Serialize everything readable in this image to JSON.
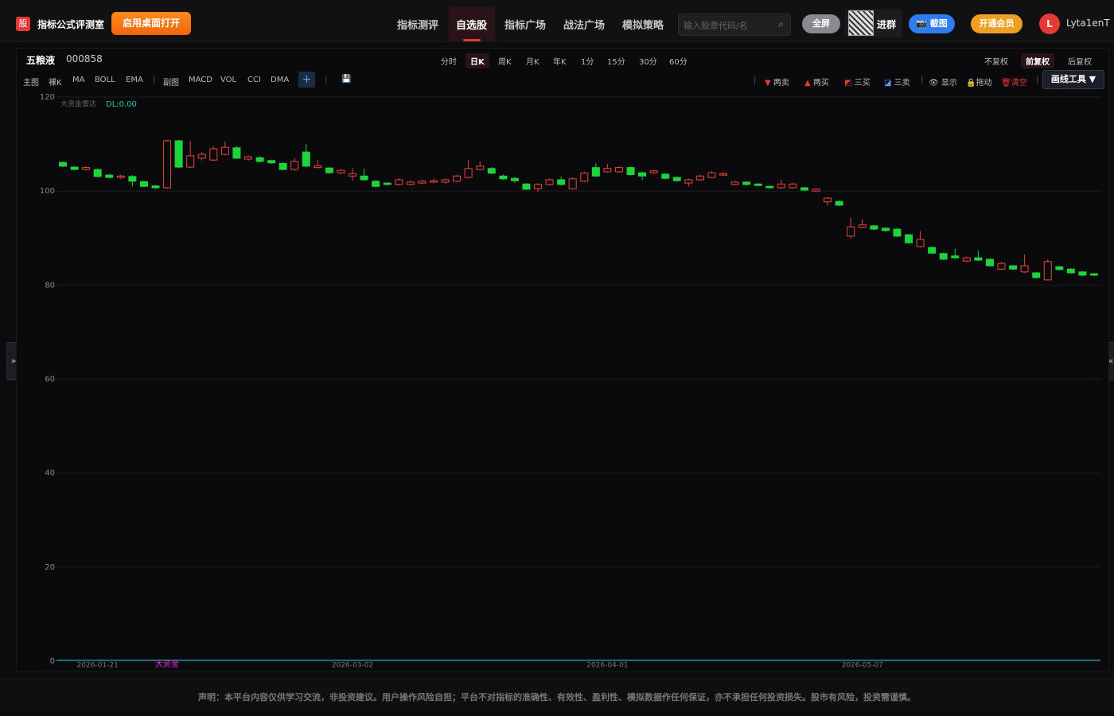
{
  "header": {
    "logo": "股",
    "app_name": "指标公式评测室",
    "desktop_button": "启用桌面打开",
    "nav": [
      "指标测评",
      "自选股",
      "指标广场",
      "战法广场",
      "模拟策略"
    ],
    "search_placeholder": "输入股票代码/名",
    "fullscreen": "全屏",
    "group": "进群",
    "screenshot": "截图",
    "vip": "开通会员",
    "avatar": "L",
    "username": "Lyta1enT"
  },
  "stock": {
    "name": "五粮液",
    "code": "000858"
  },
  "periods": [
    "分时",
    "日K",
    "周K",
    "月K",
    "年K",
    "1分",
    "15分",
    "30分",
    "60分"
  ],
  "adjust": [
    "不复权",
    "前复权",
    "后复权"
  ],
  "toolbar_main": [
    "主图",
    "裸K",
    "MA",
    "BOLL",
    "EMA"
  ],
  "toolbar_sub": [
    "副图",
    "MACD",
    "VOL",
    "CCI",
    "DMA"
  ],
  "toolbar_right": [
    "两卖",
    "两买",
    "三买",
    "三卖",
    "显示",
    "拖动",
    "清空"
  ],
  "draw_tools": "画线工具",
  "disclaimer": "声明：本平台内容仅供学习交流，非投资建议。用户操作风险自担；平台不对指标的准确性、有效性、盈利性、模拟数据作任何保证，亦不承担任何投资损失。股市有风险，投资需谨慎。",
  "chart_data": {
    "type": "candlestick",
    "indicator_name": "大资金雷达",
    "indicator_value": "DL:0.00",
    "up_color": "#e8453c",
    "down_color": "#1ed43c",
    "signal_color": "#e02ce0",
    "grid": true,
    "ylim": [
      0,
      120
    ],
    "yticks": [
      0,
      20,
      40,
      60,
      80,
      100,
      120
    ],
    "categories": [
      null,
      null,
      null,
      "2026-01-21",
      null,
      null,
      null,
      null,
      null,
      null,
      null,
      null,
      null,
      null,
      null,
      null,
      null,
      null,
      null,
      null,
      null,
      null,
      null,
      null,
      null,
      "2026-03-02",
      null,
      null,
      null,
      null,
      null,
      null,
      null,
      null,
      null,
      null,
      null,
      null,
      null,
      null,
      null,
      null,
      null,
      null,
      null,
      null,
      null,
      "2026-04-01",
      null,
      null,
      null,
      null,
      null,
      null,
      null,
      null,
      null,
      null,
      null,
      null,
      null,
      null,
      null,
      null,
      null,
      null,
      null,
      null,
      null,
      "2026-05-07",
      null,
      null,
      null,
      null,
      null,
      null,
      null,
      null,
      null,
      null,
      null,
      null,
      null,
      null,
      null,
      null,
      null,
      null,
      null,
      null
    ],
    "signals": [
      null,
      null,
      null,
      null,
      null,
      null,
      null,
      null,
      null,
      "大资金",
      null,
      null,
      null,
      null,
      null,
      null,
      null,
      null,
      null,
      null,
      null,
      null,
      null,
      null,
      null,
      null,
      null,
      null,
      null,
      null,
      null,
      null,
      null,
      null,
      null,
      null,
      null,
      null,
      null,
      null,
      null,
      null,
      null,
      null,
      null,
      null,
      null,
      null,
      null,
      null,
      null,
      null,
      null,
      null,
      null,
      null,
      null,
      null,
      null,
      null,
      null,
      null,
      null,
      null,
      null,
      null,
      null,
      null,
      null,
      null,
      null,
      null,
      null,
      null,
      null,
      null,
      null,
      null,
      null,
      null,
      null,
      null,
      null,
      null,
      null,
      null,
      null,
      null,
      null,
      null
    ],
    "open": [
      106.1,
      105.1,
      104.6,
      104.6,
      103.4,
      102.9,
      103.1,
      102.0,
      101.1,
      100.7,
      110.7,
      105.1,
      107.0,
      106.6,
      107.8,
      109.2,
      106.8,
      107.1,
      106.5,
      105.9,
      104.6,
      108.3,
      105.0,
      104.9,
      103.9,
      103.2,
      103.2,
      102.1,
      101.7,
      101.4,
      101.4,
      101.7,
      101.9,
      101.9,
      102.1,
      102.9,
      104.6,
      104.8,
      103.2,
      102.7,
      101.5,
      100.5,
      101.4,
      102.4,
      100.5,
      102.1,
      105.0,
      104.1,
      104.1,
      105.0,
      103.9,
      103.9,
      103.6,
      102.9,
      101.7,
      102.4,
      102.9,
      103.4,
      101.4,
      101.9,
      101.5,
      101.0,
      100.7,
      100.7,
      100.7,
      100.0,
      97.7,
      97.8,
      90.4,
      92.3,
      92.6,
      92.1,
      91.9,
      90.7,
      88.2,
      88.0,
      86.7,
      86.2,
      85.1,
      85.8,
      85.5,
      83.4,
      84.1,
      82.8,
      82.6,
      81.1,
      83.9,
      83.4,
      82.8,
      82.4
    ],
    "close": [
      105.3,
      104.6,
      105.0,
      103.1,
      102.9,
      103.2,
      102.1,
      101.0,
      100.7,
      110.7,
      105.1,
      107.5,
      107.8,
      109.0,
      109.3,
      107.0,
      107.3,
      106.3,
      106.0,
      104.6,
      106.3,
      105.3,
      105.4,
      103.9,
      104.4,
      103.7,
      102.4,
      101.0,
      101.4,
      102.4,
      101.9,
      102.1,
      102.2,
      102.4,
      103.2,
      104.8,
      105.3,
      103.8,
      102.6,
      102.2,
      100.4,
      101.4,
      102.4,
      101.4,
      102.6,
      103.8,
      103.2,
      104.8,
      105.0,
      103.5,
      103.2,
      104.3,
      102.7,
      102.2,
      102.4,
      103.2,
      103.9,
      103.7,
      101.9,
      101.4,
      101.2,
      100.7,
      101.5,
      101.5,
      100.2,
      100.4,
      98.5,
      97.0,
      92.4,
      92.8,
      91.9,
      91.6,
      90.4,
      89.0,
      89.7,
      86.8,
      85.5,
      85.8,
      85.8,
      85.3,
      84.1,
      84.6,
      83.4,
      84.1,
      81.6,
      85.0,
      83.3,
      82.6,
      82.1,
      82.1
    ],
    "high": [
      106.3,
      105.3,
      105.3,
      104.8,
      103.6,
      103.5,
      103.4,
      102.2,
      101.3,
      110.9,
      110.9,
      110.7,
      108.3,
      109.5,
      110.5,
      109.6,
      107.6,
      107.4,
      106.7,
      106.1,
      107.0,
      110.0,
      106.6,
      105.1,
      104.7,
      104.9,
      104.7,
      102.3,
      101.9,
      102.7,
      102.2,
      102.4,
      102.5,
      102.7,
      103.5,
      106.6,
      106.3,
      105.1,
      103.5,
      103.0,
      101.7,
      101.7,
      102.7,
      103.1,
      102.9,
      104.1,
      105.9,
      105.7,
      105.3,
      105.2,
      104.1,
      104.5,
      103.8,
      103.1,
      102.7,
      103.5,
      104.2,
      104.0,
      102.2,
      102.1,
      101.7,
      101.2,
      102.4,
      101.8,
      100.9,
      100.6,
      98.7,
      98.0,
      94.4,
      94.0,
      92.8,
      92.3,
      92.1,
      90.9,
      91.5,
      88.2,
      86.9,
      87.7,
      86.1,
      87.4,
      85.7,
      84.9,
      84.3,
      86.5,
      82.8,
      85.5,
      84.1,
      83.6,
      83.0,
      82.6
    ],
    "low": [
      105.1,
      104.4,
      104.4,
      102.9,
      102.7,
      102.6,
      101.0,
      100.8,
      100.5,
      100.5,
      104.9,
      104.9,
      106.5,
      106.4,
      107.6,
      106.8,
      106.5,
      106.1,
      105.8,
      104.4,
      104.3,
      105.1,
      104.8,
      103.7,
      103.6,
      102.2,
      102.2,
      100.8,
      101.2,
      101.2,
      101.2,
      101.5,
      101.7,
      101.6,
      101.9,
      102.7,
      104.4,
      103.6,
      102.4,
      101.8,
      100.2,
      99.9,
      101.2,
      101.2,
      100.3,
      101.9,
      103.0,
      103.9,
      103.9,
      103.3,
      102.4,
      103.7,
      102.5,
      102.0,
      101.0,
      102.2,
      102.7,
      103.2,
      101.2,
      101.2,
      101.0,
      100.5,
      100.5,
      100.5,
      100.0,
      99.8,
      96.9,
      96.8,
      89.9,
      92.1,
      91.7,
      91.4,
      90.2,
      88.8,
      88.0,
      86.6,
      85.3,
      85.6,
      84.9,
      85.1,
      83.9,
      83.2,
      83.2,
      82.6,
      81.4,
      80.9,
      83.1,
      82.4,
      81.9,
      81.9
    ]
  }
}
